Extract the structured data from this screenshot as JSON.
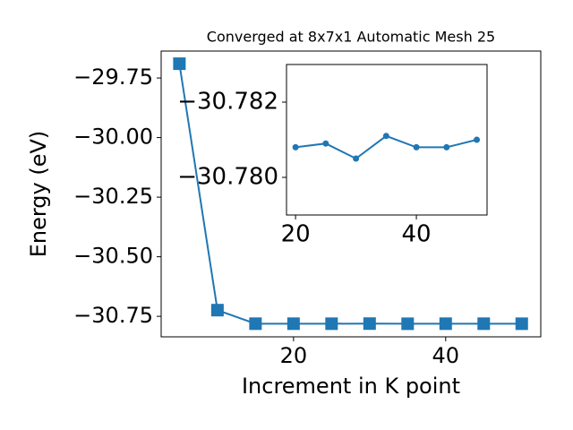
{
  "chart_data": [
    {
      "type": "line",
      "title": "Converged at 8x7x1 Automatic Mesh 25",
      "x_label": "Increment in K point",
      "y_label": "Energy (eV)",
      "x": [
        5,
        10,
        15,
        20,
        25,
        30,
        35,
        40,
        45,
        50
      ],
      "series": [
        {
          "color": "#1f77b4",
          "marker": "square",
          "values": [
            -29.69,
            -30.724,
            -30.7808,
            -30.7808,
            -30.7809,
            -30.7805,
            -30.7811,
            -30.7808,
            -30.7808,
            -30.781
          ]
        }
      ],
      "xlim": [
        2.6,
        52.5
      ],
      "xticks": [
        20,
        40
      ],
      "ylim": [
        -30.836,
        -29.637
      ],
      "yticks": [
        {
          "value": -30.75,
          "label": "−30.75"
        },
        {
          "value": -30.5,
          "label": "−30.50"
        },
        {
          "value": -30.25,
          "label": "−30.25"
        },
        {
          "value": -30.0,
          "label": "−30.00"
        },
        {
          "value": -29.75,
          "label": "−29.75"
        }
      ]
    },
    {
      "type": "line",
      "x": [
        20,
        25,
        30,
        35,
        40,
        45,
        50
      ],
      "series": [
        {
          "color": "#1f77b4",
          "marker": "circle",
          "values": [
            -30.7808,
            -30.7809,
            -30.7805,
            -30.7811,
            -30.7808,
            -30.7808,
            -30.781
          ]
        }
      ],
      "xlim": [
        18.5,
        51.7
      ],
      "xticks": [
        20,
        40
      ],
      "ylim": [
        -30.779,
        -30.783
      ],
      "yticks": [
        {
          "value": -30.78,
          "label": "−30.780"
        },
        {
          "value": -30.782,
          "label": "−30.782"
        }
      ]
    }
  ]
}
